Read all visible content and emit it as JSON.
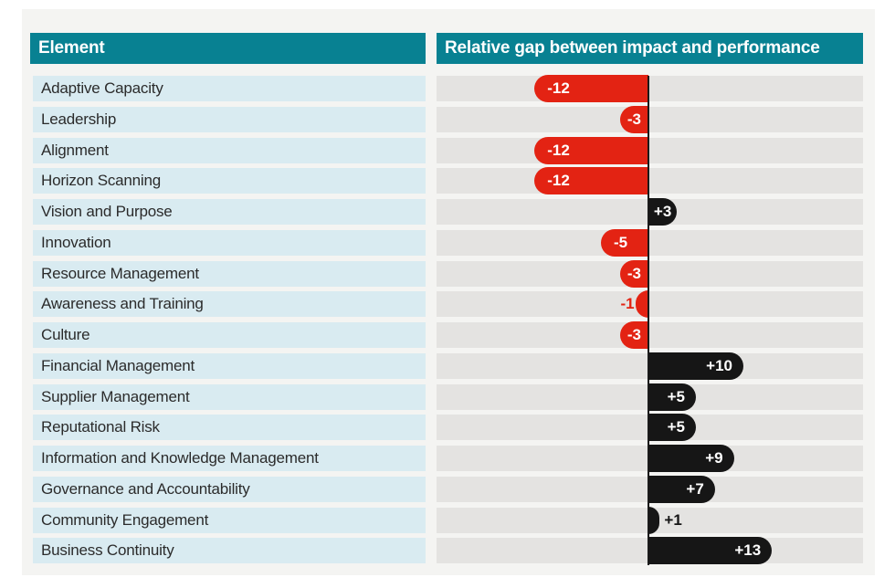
{
  "table": {
    "left_header": "Element",
    "right_header": "Relative gap between impact and performance"
  },
  "chart_data": {
    "type": "bar",
    "orientation": "horizontal-diverging",
    "title": "Relative gap between impact and performance",
    "xlabel": "",
    "ylabel": "Element",
    "xlim": [
      -22,
      22
    ],
    "grid": false,
    "legend": "none",
    "categories": [
      "Adaptive Capacity",
      "Leadership",
      "Alignment",
      "Horizon Scanning",
      "Vision and Purpose",
      "Innovation",
      "Resource Management",
      "Awareness and Training",
      "Culture",
      "Financial Management",
      "Supplier Management",
      "Reputational Risk",
      "Information and Knowledge Management",
      "Governance and Accountability",
      "Community Engagement",
      "Business Continuity"
    ],
    "values": [
      -12,
      -3,
      -12,
      -12,
      3,
      -5,
      -3,
      -1,
      -3,
      10,
      5,
      5,
      9,
      7,
      1,
      13
    ],
    "value_labels": [
      "-12",
      "-3",
      "-12",
      "-12",
      "+3",
      "-5",
      "-3",
      "-1",
      "-3",
      "+10",
      "+5",
      "+5",
      "+9",
      "+7",
      "+1",
      "+13"
    ],
    "colors": {
      "negative_bar": "#e32313",
      "positive_bar": "#161616",
      "header_bg": "#088192",
      "header_text": "#ffffff",
      "row_label_bg": "#d9ebf1",
      "track_bg": "#e4e3e1",
      "panel_bg": "#f4f4f2",
      "label_text": "#2b2b2b",
      "bar_label_text": "#ffffff",
      "zero_line": "#1a1a1a"
    }
  }
}
